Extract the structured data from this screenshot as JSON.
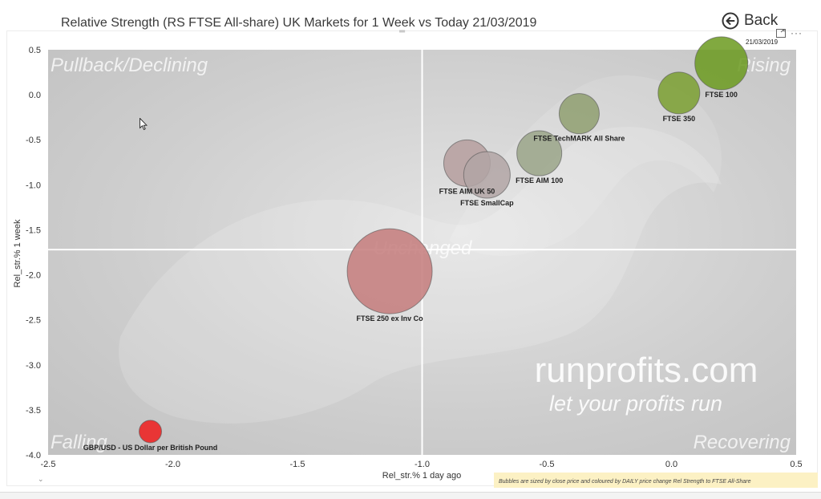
{
  "header": {
    "title": "Relative Strength (RS FTSE All-share) UK Markets for 1 Week vs Today 21/03/2019",
    "back_label": "Back",
    "date_stamp": "21/03/2019",
    "back_icon": "arrow-left-circle-icon",
    "focus_icon": "focus-mode-icon",
    "more_icon": "more-options-icon"
  },
  "watermark": {
    "line1": "runprofits.com",
    "line2": "let your profits run"
  },
  "quadrants": {
    "top_left": "Pullback/Declining",
    "top_right": "Rising",
    "center": "Unchanged",
    "bottom_left": "Falling",
    "bottom_right": "Recovering"
  },
  "footnote": "Bubbles are sized by close price and coloured by DAILY price change Rel Strength to FTSE All-Share",
  "chart_data": {
    "type": "scatter",
    "xlabel": "Rel_str.% 1 day ago",
    "ylabel": "Rel_str.% 1 week",
    "xlim": [
      -2.5,
      0.5
    ],
    "ylim": [
      -4.0,
      0.5
    ],
    "x_ticks": [
      "-2.5",
      "-2.0",
      "-1.5",
      "-1.0",
      "-0.5",
      "0.0",
      "0.5"
    ],
    "y_ticks": [
      "0.5",
      "0.0",
      "-0.5",
      "-1.0",
      "-1.5",
      "-2.0",
      "-2.5",
      "-3.0",
      "-3.5",
      "-4.0"
    ],
    "reference_lines": {
      "x": -1.0,
      "y": -1.72
    },
    "points": [
      {
        "label": "FTSE 100",
        "x": 0.2,
        "y": 0.35,
        "size": 33,
        "color": "#6b9a1f"
      },
      {
        "label": "FTSE 350",
        "x": 0.03,
        "y": 0.02,
        "size": 26,
        "color": "#7a9f30"
      },
      {
        "label": "FTSE TechMARK All Share",
        "x": -0.37,
        "y": -0.21,
        "size": 25,
        "color": "#8f9f70"
      },
      {
        "label": "FTSE AIM 100",
        "x": -0.53,
        "y": -0.65,
        "size": 28,
        "color": "#9aa488"
      },
      {
        "label": "FTSE AIM UK 50",
        "x": -0.82,
        "y": -0.76,
        "size": 29,
        "color": "#b59d9d"
      },
      {
        "label": "FTSE SmallCap",
        "x": -0.74,
        "y": -0.89,
        "size": 29,
        "color": "#b1a5a5"
      },
      {
        "label": "FTSE 250 ex Inv Co",
        "x": -1.13,
        "y": -1.96,
        "size": 53,
        "color": "#c47b7b"
      },
      {
        "label": "GBP/USD - US Dollar per British Pound",
        "x": -2.09,
        "y": -3.74,
        "size": 14,
        "color": "#ee1b1b"
      }
    ],
    "background_color": "#cecece",
    "grid": false
  }
}
